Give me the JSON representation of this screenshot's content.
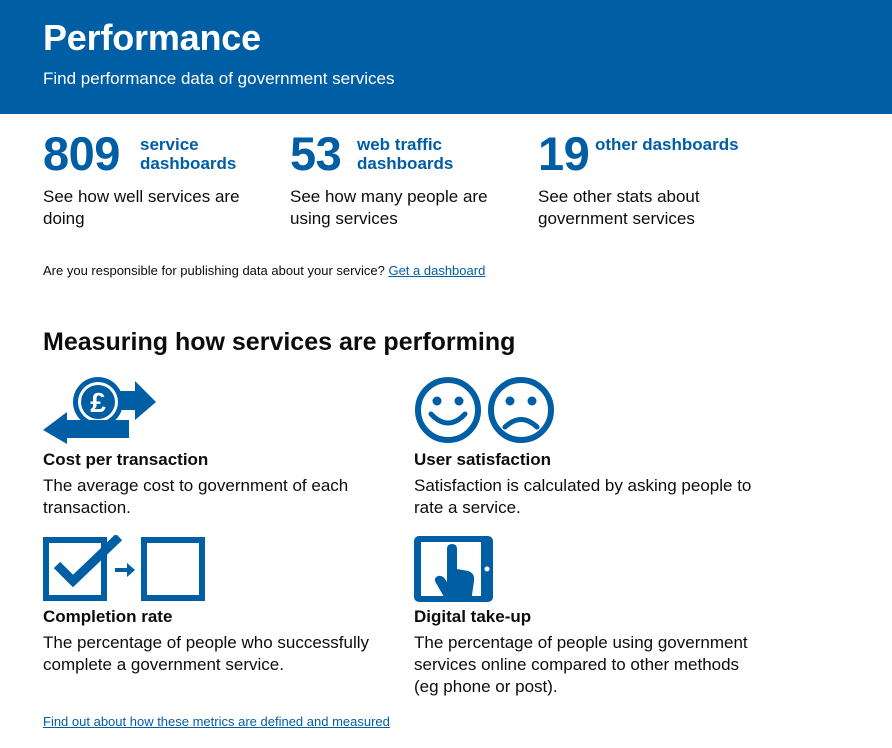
{
  "header": {
    "title": "Performance",
    "subtitle": "Find performance data of government services",
    "color": "#005ea5"
  },
  "stats": [
    {
      "number": "809",
      "label": "service dashboards",
      "description": "See how well services are doing"
    },
    {
      "number": "53",
      "label": "web traffic dashboards",
      "description": "See how many people are using services"
    },
    {
      "number": "19",
      "label": "other dashboards",
      "description": "See other stats about government services"
    }
  ],
  "publish": {
    "text": "Are you responsible for publishing data about your service?",
    "link": "Get a dashboard"
  },
  "section": {
    "title": "Measuring how services are performing"
  },
  "metrics": [
    {
      "icon": "pound-exchange-icon",
      "title": "Cost per transaction",
      "description": "The average cost to government of each transaction."
    },
    {
      "icon": "happy-sad-faces-icon",
      "title": "User satisfaction",
      "description": "Satisfaction is calculated by asking people to rate a service."
    },
    {
      "icon": "checkbox-completion-icon",
      "title": "Completion rate",
      "description": "The percentage of people who successfully complete a government service."
    },
    {
      "icon": "tablet-touch-icon",
      "title": "Digital take-up",
      "description": "The percentage of people using government services online compared to other methods (eg phone or post)."
    }
  ],
  "footer_link": "Find out about how these metrics are defined and measured"
}
